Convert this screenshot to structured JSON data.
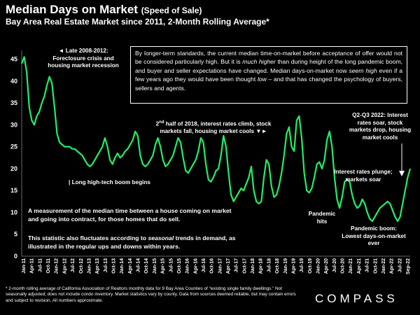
{
  "header": {
    "title": "Median Days on Market",
    "title_paren": "(Speed of Sale)",
    "subtitle": "Bay Area Real Estate Market since 2011, 2-Month Rolling Average*"
  },
  "box": {
    "p1": "By longer-term standards, the current median time-on-market before acceptance of offer would not be considered particularly high. But it is ",
    "em1": "much higher",
    "p2": " than during height of the long pandemic boom, and buyer and seller expectations have changed. Median days-on-market now ",
    "em2": "seem high",
    "p3": " even if a few years ago they would have been thought ",
    "em3": "low",
    "p4": " – and that has changed the psychology of buyers, sellers and agents."
  },
  "annotations": {
    "late2008": "◄ Late 2008-2012: Foreclosure crisis and housing market recession",
    "hightech": "| Long high-tech boom begins",
    "half2018_pre": "2",
    "half2018_sup": "nd",
    "half2018_post": " half of 2018, interest rates climb, stock markets fall, housing market cools ▼►",
    "q2q3": "Q2-Q3 2022: Interest rates soar, stock markets drop, housing market cools",
    "plunge": "Interest rates plunge; markets soar",
    "pandemic": "Pandemic hits",
    "boom": "Pandemic boom: Lowest days-on-market ever"
  },
  "description": {
    "p1": "A measurement of the median time between a house coming on market and going into contract, for those homes that do sell.",
    "p2a": "This statistic also fluctuates according to ",
    "p2em": "seasonal",
    "p2b": " trends in demand, as illustrated in the regular ups and downs within years."
  },
  "footnote": "* 2-month rolling average of California Association of Realtors monthly data for 9 Bay Area Counties of “existing single family dwellings.” Not seasonally adjusted; does not include condo inventory. Market statistics vary by county. Data from sources deemed reliable, but may contain errors and subject to revision. All numbers approximate.",
  "logo": "COMPASS",
  "chart_data": {
    "type": "line",
    "title": "Median Days on Market (Speed of Sale)",
    "subtitle": "Bay Area Real Estate Market since 2011, 2-Month Rolling Average*",
    "ylim": [
      0,
      47
    ],
    "yticks": [
      0,
      5,
      10,
      15,
      20,
      25,
      30,
      35,
      40,
      45
    ],
    "series_color": "#22ee66",
    "x_labels": [
      "Jan-11",
      "Apr-11",
      "Jul-11",
      "Oct-11",
      "Jan-12",
      "Apr-12",
      "Jul-12",
      "Oct-12",
      "Jan-13",
      "Apr-13",
      "Jul-13",
      "Oct-13",
      "Jan-14",
      "Apr-14",
      "Jul-14",
      "Oct-14",
      "Jan-15",
      "Apr-15",
      "Jul-15",
      "Oct-15",
      "Jan-16",
      "Apr-16",
      "Jul-16",
      "Oct-16",
      "Jan-17",
      "Apr-17",
      "Jul-17",
      "Oct-17",
      "Jan-18",
      "Apr-18",
      "Jul-18",
      "Oct-18",
      "Jan-19",
      "Apr-19",
      "Jul-19",
      "Oct-19",
      "Jan-20",
      "Apr-20",
      "Jul-20",
      "Oct-20",
      "Jan-21",
      "Apr-21",
      "Jul-21",
      "Oct-21",
      "Jan-22",
      "Apr-22",
      "Jul-22",
      "Sep-22"
    ],
    "points": [
      [
        0,
        44
      ],
      [
        0.5,
        45.5
      ],
      [
        1,
        42
      ],
      [
        1.5,
        34
      ],
      [
        2,
        31
      ],
      [
        2.5,
        30
      ],
      [
        3,
        32
      ],
      [
        3.5,
        33
      ],
      [
        4,
        35
      ],
      [
        4.5,
        36.5
      ],
      [
        5,
        39
      ],
      [
        5.5,
        41
      ],
      [
        6,
        39.5
      ],
      [
        6.5,
        34
      ],
      [
        7,
        28
      ],
      [
        7.5,
        26
      ],
      [
        8,
        25.5
      ],
      [
        8.5,
        25
      ],
      [
        9,
        25
      ],
      [
        9.5,
        25
      ],
      [
        10,
        24.5
      ],
      [
        10.5,
        24.5
      ],
      [
        11,
        24
      ],
      [
        11.5,
        23.5
      ],
      [
        12,
        23
      ],
      [
        12.5,
        22
      ],
      [
        13,
        21
      ],
      [
        13.5,
        20.5
      ],
      [
        14,
        21
      ],
      [
        14.5,
        22
      ],
      [
        15,
        23
      ],
      [
        15.5,
        24
      ],
      [
        16,
        25
      ],
      [
        16.5,
        27
      ],
      [
        17,
        25
      ],
      [
        17.5,
        22
      ],
      [
        18,
        21
      ],
      [
        18.5,
        22.5
      ],
      [
        19,
        23.5
      ],
      [
        19.5,
        22.5
      ],
      [
        20,
        23
      ],
      [
        20.5,
        24
      ],
      [
        21,
        24.5
      ],
      [
        21.5,
        25.5
      ],
      [
        22,
        26.5
      ],
      [
        22.5,
        28.5
      ],
      [
        23,
        27.5
      ],
      [
        23.5,
        23
      ],
      [
        24,
        21
      ],
      [
        24.5,
        20.5
      ],
      [
        25,
        21
      ],
      [
        25.5,
        22
      ],
      [
        26,
        23
      ],
      [
        26.5,
        25.5
      ],
      [
        27,
        27
      ],
      [
        27.5,
        25
      ],
      [
        28,
        22
      ],
      [
        28.5,
        20.5
      ],
      [
        29,
        21
      ],
      [
        29.5,
        22
      ],
      [
        30,
        23
      ],
      [
        30.5,
        25
      ],
      [
        31,
        27
      ],
      [
        31.5,
        26
      ],
      [
        32,
        22.5
      ],
      [
        32.5,
        19.5
      ],
      [
        33,
        19
      ],
      [
        33.5,
        20
      ],
      [
        34,
        21
      ],
      [
        34.5,
        22
      ],
      [
        35,
        24
      ],
      [
        35.5,
        27
      ],
      [
        36,
        26
      ],
      [
        36.5,
        21
      ],
      [
        37,
        17.5
      ],
      [
        37.5,
        17
      ],
      [
        38,
        18
      ],
      [
        38.5,
        19.5
      ],
      [
        39,
        20
      ],
      [
        39.5,
        23
      ],
      [
        40,
        27.5
      ],
      [
        40.5,
        25
      ],
      [
        41,
        19
      ],
      [
        41.5,
        14
      ],
      [
        42,
        12.5
      ],
      [
        42.5,
        13.5
      ],
      [
        43,
        14.5
      ],
      [
        43.5,
        15.5
      ],
      [
        44,
        15
      ],
      [
        44.5,
        16.5
      ],
      [
        45,
        18
      ],
      [
        45.5,
        20.5
      ],
      [
        46,
        15
      ],
      [
        46.5,
        12.5
      ],
      [
        47,
        12
      ],
      [
        47.5,
        12.5
      ],
      [
        48,
        18
      ],
      [
        48.5,
        22
      ],
      [
        49,
        21
      ],
      [
        49.5,
        16
      ],
      [
        50,
        13.5
      ],
      [
        50.5,
        14
      ],
      [
        51,
        16
      ],
      [
        51.5,
        19
      ],
      [
        52,
        23
      ],
      [
        52.5,
        28
      ],
      [
        53,
        29.5
      ],
      [
        53.5,
        25
      ],
      [
        54,
        24
      ],
      [
        54.5,
        31
      ],
      [
        55,
        32
      ],
      [
        55.5,
        27
      ],
      [
        56,
        19
      ],
      [
        56.5,
        15
      ],
      [
        57,
        14.5
      ],
      [
        57.5,
        15.5
      ],
      [
        58,
        18
      ],
      [
        58.5,
        21
      ],
      [
        59,
        21.5
      ],
      [
        59.5,
        20
      ],
      [
        60,
        22
      ],
      [
        60.5,
        26.5
      ],
      [
        61,
        28.5
      ],
      [
        61.5,
        25
      ],
      [
        62,
        18
      ],
      [
        62.5,
        13
      ],
      [
        63,
        11
      ],
      [
        63.5,
        13.5
      ],
      [
        64,
        17
      ],
      [
        64.5,
        17.5
      ],
      [
        65,
        17
      ],
      [
        65.5,
        14
      ],
      [
        66,
        12
      ],
      [
        66.5,
        11
      ],
      [
        67,
        11.5
      ],
      [
        67.5,
        13
      ],
      [
        68,
        12
      ],
      [
        68.5,
        10
      ],
      [
        69,
        8.5
      ],
      [
        69.5,
        8
      ],
      [
        70,
        9
      ],
      [
        70.5,
        10
      ],
      [
        71,
        11
      ],
      [
        71.5,
        11.5
      ],
      [
        72,
        12
      ],
      [
        72.5,
        12.5
      ],
      [
        73,
        12
      ],
      [
        73.5,
        10.5
      ],
      [
        74,
        9
      ],
      [
        74.5,
        8
      ],
      [
        75,
        9
      ],
      [
        75.5,
        12
      ],
      [
        76,
        15
      ],
      [
        76.5,
        18
      ],
      [
        77,
        20
      ]
    ],
    "x_max": 77
  }
}
